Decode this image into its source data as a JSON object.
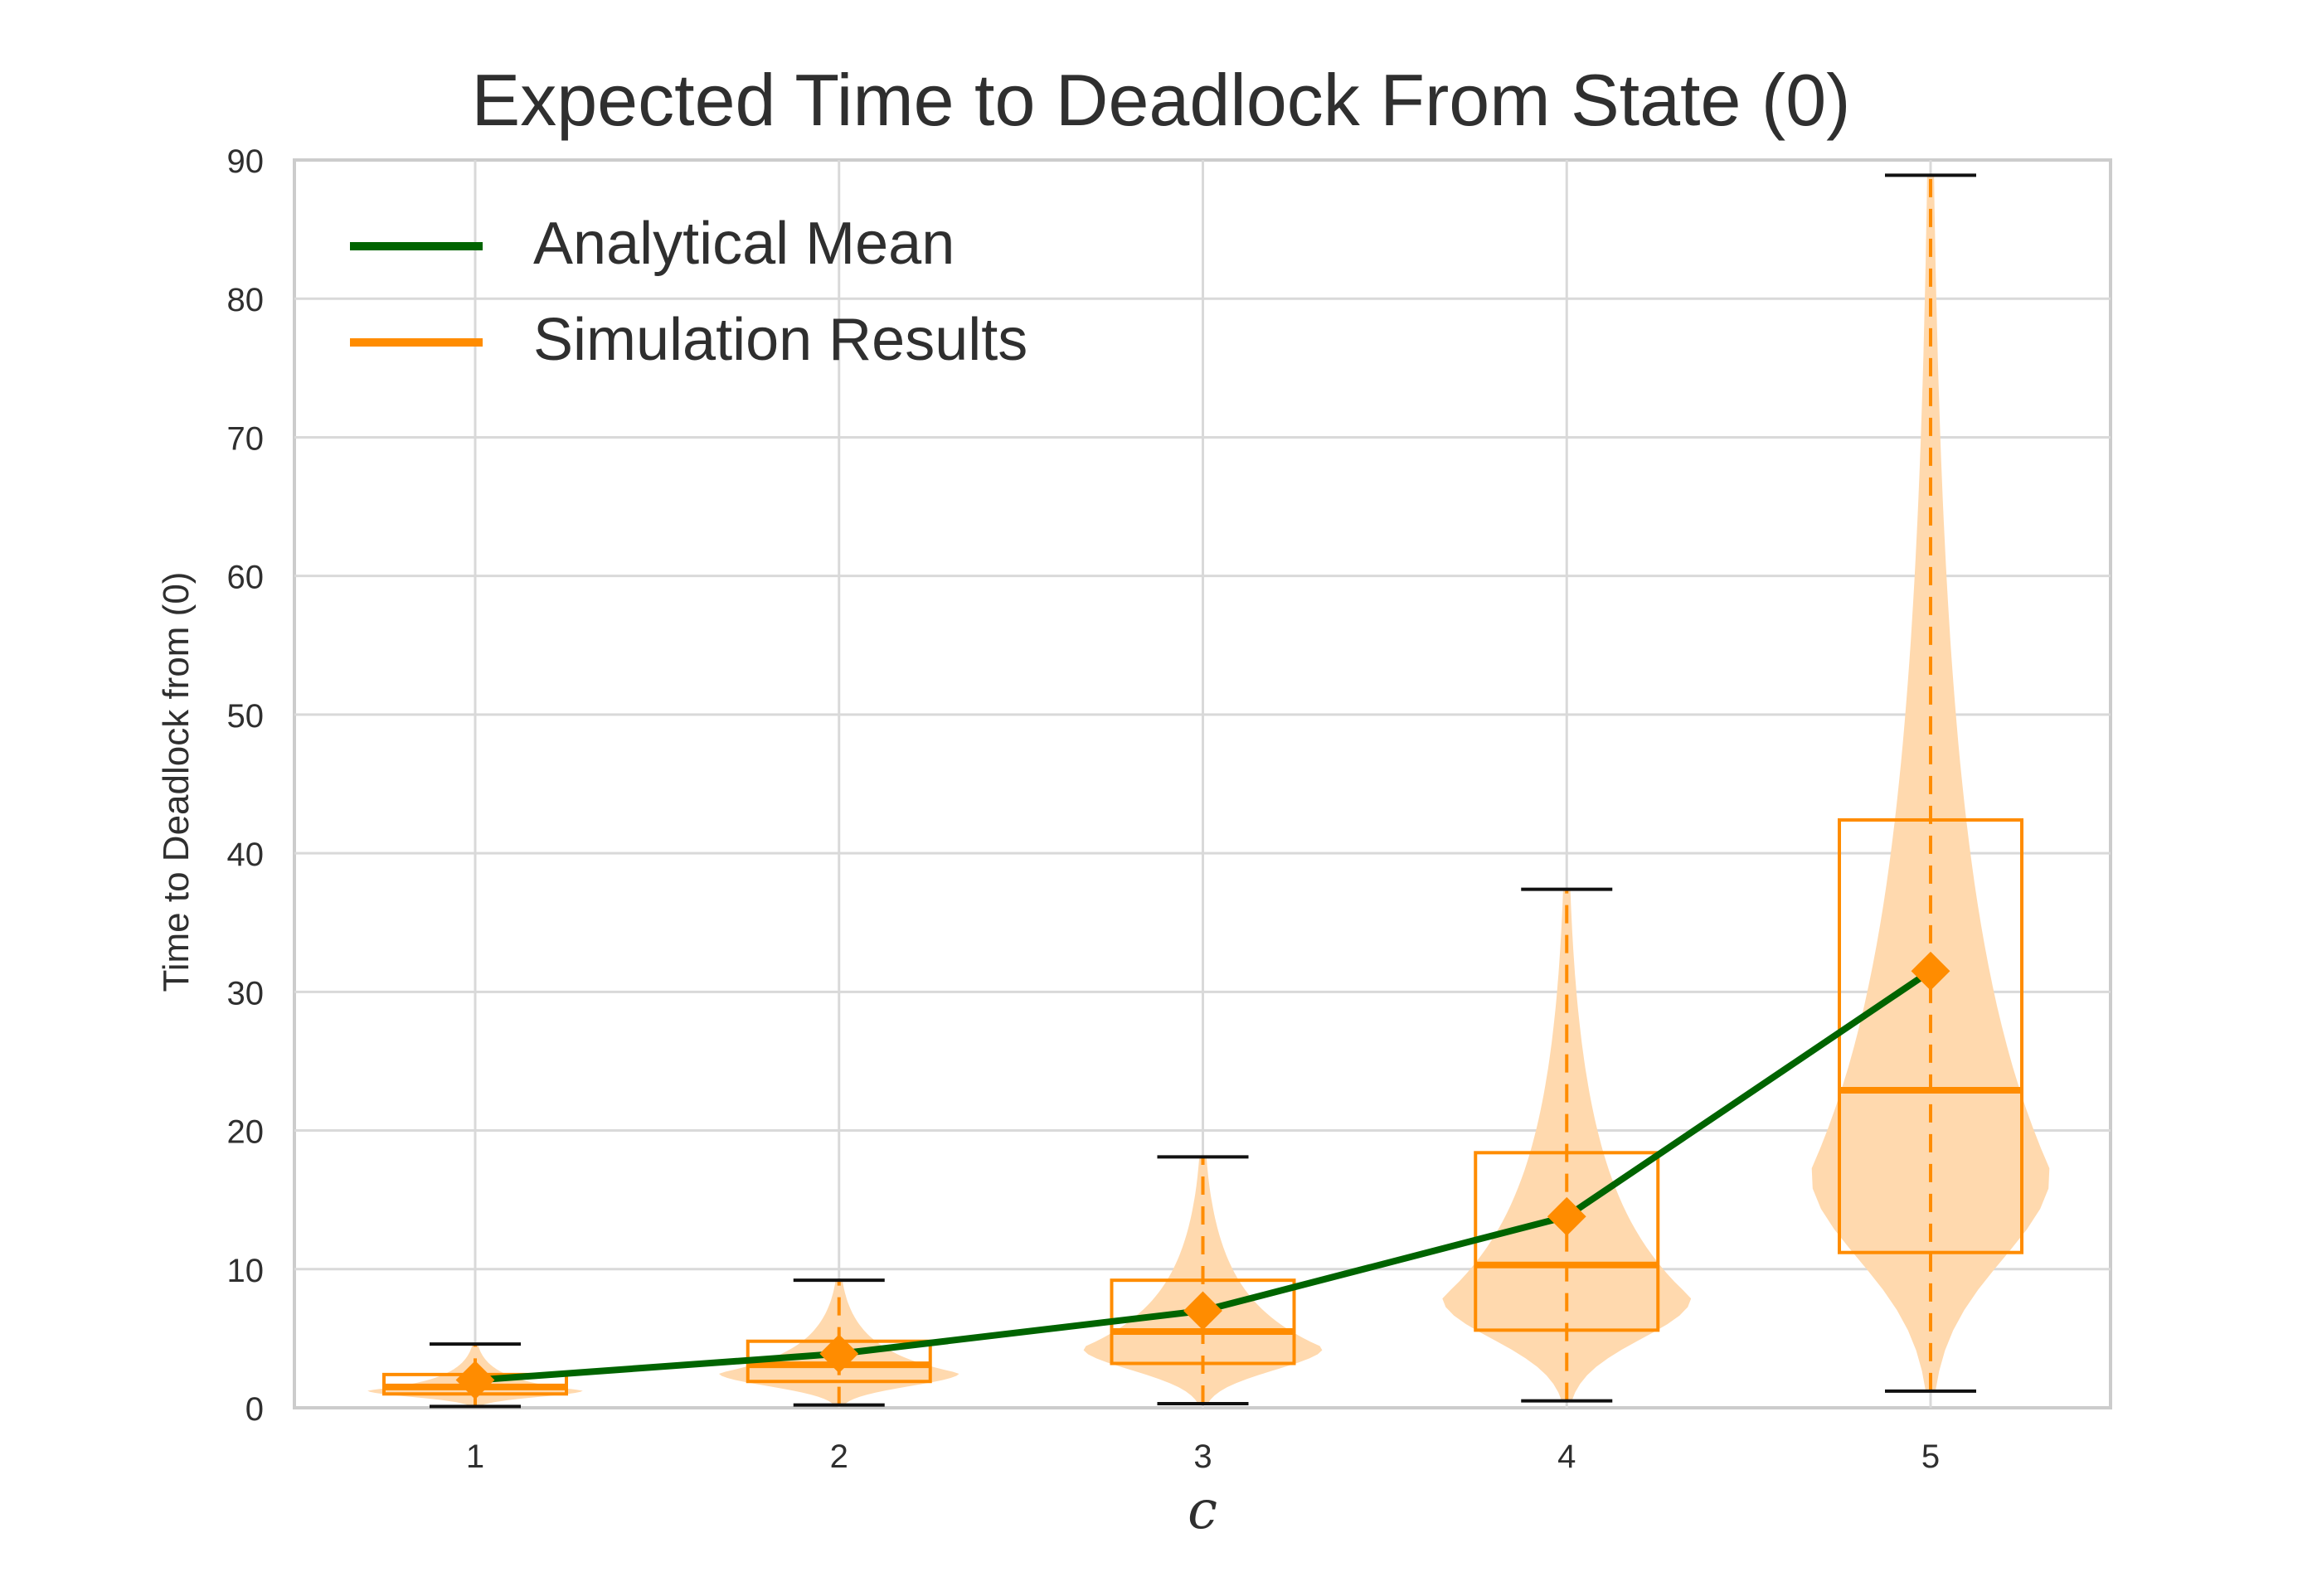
{
  "chart_data": {
    "type": "violin",
    "title": "Expected Time to Deadlock From State (0)",
    "xlabel": "c",
    "ylabel": "Time to Deadlock from (0)",
    "categories": [
      "1",
      "2",
      "3",
      "4",
      "5"
    ],
    "ylim": [
      0,
      90
    ],
    "yticks": [
      0,
      10,
      20,
      30,
      40,
      50,
      60,
      70,
      80,
      90
    ],
    "grid": true,
    "legend_position": "top-left",
    "colors": {
      "analytical": "#006400",
      "simulation": "#ff8c00",
      "violin_fill": "#ffd9ae",
      "whisker_cap": "#111111",
      "grid": "#d9d9d9",
      "axis_frame": "#cccccc",
      "text": "#2f2f2f"
    },
    "series": [
      {
        "name": "Analytical Mean",
        "values": [
          2.0,
          3.9,
          7.0,
          13.8,
          31.5
        ]
      },
      {
        "name": "Simulation Results",
        "boxes": [
          {
            "min": 0.1,
            "q1": 1.0,
            "median": 1.5,
            "q3": 2.4,
            "max": 4.6
          },
          {
            "min": 0.2,
            "q1": 1.9,
            "median": 3.1,
            "q3": 4.8,
            "max": 9.2
          },
          {
            "min": 0.3,
            "q1": 3.2,
            "median": 5.5,
            "q3": 9.2,
            "max": 18.1
          },
          {
            "min": 0.5,
            "q1": 5.6,
            "median": 10.3,
            "q3": 18.4,
            "max": 37.4
          },
          {
            "min": 1.2,
            "q1": 11.2,
            "median": 22.9,
            "q3": 42.4,
            "max": 88.9
          }
        ]
      }
    ]
  }
}
